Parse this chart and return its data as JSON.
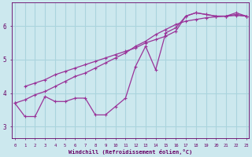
{
  "xlabel": "Windchill (Refroidissement éolien,°C)",
  "background_color": "#cce8ee",
  "grid_color": "#aad4dd",
  "line_color": "#993399",
  "line1_x": [
    1,
    2,
    3,
    4,
    5,
    6,
    7,
    8,
    9,
    10,
    11,
    12,
    13,
    14,
    15,
    16,
    17,
    18,
    19,
    20,
    21,
    22,
    23
  ],
  "line1_y": [
    4.2,
    4.3,
    4.4,
    4.55,
    4.65,
    4.75,
    4.85,
    4.95,
    5.05,
    5.15,
    5.25,
    5.35,
    5.5,
    5.6,
    5.7,
    5.85,
    6.3,
    6.4,
    6.35,
    6.3,
    6.3,
    6.35,
    6.3
  ],
  "line2_x": [
    0,
    1,
    2,
    3,
    4,
    5,
    6,
    7,
    8,
    9,
    10,
    11,
    12,
    13,
    14,
    15,
    16,
    17,
    18,
    19,
    20,
    21,
    22,
    23
  ],
  "line2_y": [
    3.7,
    3.8,
    3.95,
    4.05,
    4.2,
    4.35,
    4.5,
    4.6,
    4.75,
    4.9,
    5.05,
    5.2,
    5.4,
    5.55,
    5.75,
    5.9,
    6.05,
    6.15,
    6.2,
    6.25,
    6.28,
    6.3,
    6.32,
    6.3
  ],
  "line3_x": [
    0,
    1,
    2,
    3,
    4,
    5,
    6,
    7,
    8,
    9,
    10,
    11,
    12,
    13,
    14,
    15,
    16,
    17,
    18,
    19,
    20,
    21,
    22,
    23
  ],
  "line3_y": [
    3.7,
    3.3,
    3.3,
    3.9,
    3.75,
    3.75,
    3.85,
    3.85,
    3.35,
    3.35,
    3.6,
    3.85,
    4.8,
    5.4,
    4.7,
    5.8,
    5.95,
    6.3,
    6.4,
    6.35,
    6.3,
    6.3,
    6.4,
    6.3
  ],
  "ylim": [
    2.65,
    6.7
  ],
  "xlim": [
    -0.3,
    23.3
  ],
  "yticks": [
    3,
    4,
    5,
    6
  ],
  "xticks": [
    0,
    1,
    2,
    3,
    4,
    5,
    6,
    7,
    8,
    9,
    10,
    11,
    12,
    13,
    14,
    15,
    16,
    17,
    18,
    19,
    20,
    21,
    22,
    23
  ]
}
